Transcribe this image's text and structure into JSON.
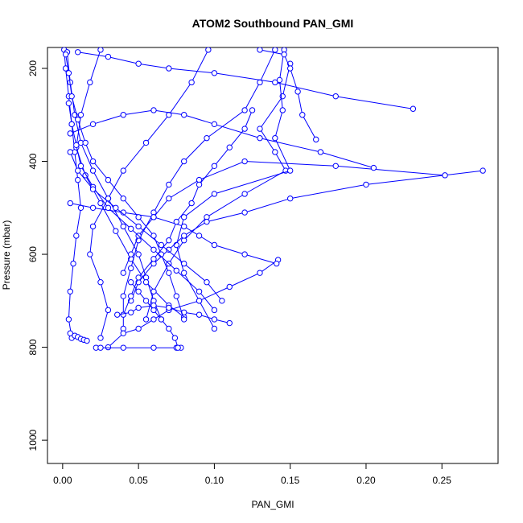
{
  "chart_data": {
    "type": "line",
    "title": "ATOM2 Southbound PAN_GMI",
    "xlabel": "PAN_GMI",
    "ylabel": "Pressure (mbar)",
    "xlim": [
      -0.01,
      0.287
    ],
    "ylim": [
      1050,
      155
    ],
    "y_reversed": true,
    "xticks": [
      0.0,
      0.05,
      0.1,
      0.15,
      0.2,
      0.25
    ],
    "xtick_labels": [
      "0.00",
      "0.05",
      "0.10",
      "0.15",
      "0.20",
      "0.25"
    ],
    "yticks": [
      200,
      400,
      600,
      800,
      1000
    ],
    "ytick_labels": [
      "200",
      "400",
      "600",
      "800",
      "1000"
    ],
    "grid": false,
    "series_color": "#0000ff",
    "marker": "open-circle",
    "series": [
      {
        "points": [
          [
            0.001,
            160
          ],
          [
            0.002,
            200
          ],
          [
            0.004,
            260
          ],
          [
            0.006,
            320
          ],
          [
            0.008,
            380
          ],
          [
            0.01,
            440
          ],
          [
            0.012,
            500
          ],
          [
            0.009,
            560
          ],
          [
            0.007,
            620
          ],
          [
            0.005,
            680
          ],
          [
            0.004,
            740
          ],
          [
            0.006,
            780
          ]
        ]
      },
      {
        "points": [
          [
            0.003,
            165
          ],
          [
            0.005,
            230
          ],
          [
            0.008,
            300
          ],
          [
            0.012,
            360
          ],
          [
            0.02,
            420
          ],
          [
            0.03,
            480
          ],
          [
            0.04,
            540
          ],
          [
            0.05,
            600
          ],
          [
            0.055,
            650
          ],
          [
            0.06,
            700
          ],
          [
            0.065,
            740
          ]
        ]
      },
      {
        "points": [
          [
            0.025,
            160
          ],
          [
            0.018,
            230
          ],
          [
            0.012,
            300
          ],
          [
            0.009,
            370
          ],
          [
            0.015,
            430
          ],
          [
            0.025,
            490
          ],
          [
            0.035,
            550
          ],
          [
            0.045,
            610
          ],
          [
            0.055,
            660
          ],
          [
            0.07,
            710
          ],
          [
            0.08,
            735
          ]
        ]
      },
      {
        "points": [
          [
            0.096,
            160
          ],
          [
            0.085,
            230
          ],
          [
            0.07,
            300
          ],
          [
            0.055,
            360
          ],
          [
            0.04,
            420
          ],
          [
            0.03,
            480
          ],
          [
            0.02,
            540
          ],
          [
            0.018,
            600
          ],
          [
            0.025,
            660
          ],
          [
            0.03,
            720
          ],
          [
            0.025,
            780
          ]
        ]
      },
      {
        "points": [
          [
            0.14,
            160
          ],
          [
            0.13,
            230
          ],
          [
            0.12,
            290
          ],
          [
            0.095,
            350
          ],
          [
            0.08,
            400
          ],
          [
            0.07,
            450
          ],
          [
            0.06,
            510
          ],
          [
            0.05,
            570
          ],
          [
            0.045,
            630
          ],
          [
            0.04,
            690
          ],
          [
            0.04,
            760
          ]
        ]
      },
      {
        "points": [
          [
            0.15,
            190
          ],
          [
            0.145,
            260
          ],
          [
            0.13,
            330
          ],
          [
            0.14,
            380
          ],
          [
            0.147,
            420
          ],
          [
            0.12,
            470
          ],
          [
            0.095,
            520
          ],
          [
            0.08,
            570
          ],
          [
            0.07,
            620
          ],
          [
            0.06,
            680
          ],
          [
            0.055,
            740
          ]
        ]
      },
      {
        "points": [
          [
            0.146,
            160
          ],
          [
            0.143,
            225
          ],
          [
            0.145,
            290
          ],
          [
            0.14,
            350
          ],
          [
            0.15,
            420
          ],
          [
            0.1,
            470
          ],
          [
            0.08,
            520
          ],
          [
            0.075,
            580
          ],
          [
            0.08,
            640
          ],
          [
            0.09,
            700
          ],
          [
            0.1,
            760
          ]
        ]
      },
      {
        "points": [
          [
            0.231,
            287
          ],
          [
            0.18,
            260
          ],
          [
            0.14,
            230
          ],
          [
            0.1,
            210
          ],
          [
            0.07,
            200
          ],
          [
            0.05,
            190
          ],
          [
            0.03,
            175
          ],
          [
            0.01,
            165
          ]
        ]
      },
      {
        "points": [
          [
            0.277,
            420
          ],
          [
            0.2,
            450
          ],
          [
            0.15,
            480
          ],
          [
            0.12,
            510
          ],
          [
            0.095,
            530
          ],
          [
            0.08,
            560
          ],
          [
            0.07,
            590
          ],
          [
            0.06,
            620
          ],
          [
            0.05,
            660
          ],
          [
            0.045,
            700
          ]
        ]
      },
      {
        "points": [
          [
            0.252,
            430
          ],
          [
            0.18,
            410
          ],
          [
            0.12,
            400
          ],
          [
            0.09,
            440
          ],
          [
            0.07,
            480
          ],
          [
            0.06,
            520
          ],
          [
            0.05,
            560
          ],
          [
            0.045,
            600
          ],
          [
            0.04,
            640
          ]
        ]
      },
      {
        "points": [
          [
            0.205,
            414
          ],
          [
            0.17,
            380
          ],
          [
            0.13,
            350
          ],
          [
            0.1,
            320
          ],
          [
            0.08,
            300
          ],
          [
            0.06,
            290
          ],
          [
            0.04,
            300
          ],
          [
            0.02,
            320
          ],
          [
            0.005,
            340
          ]
        ]
      },
      {
        "points": [
          [
            0.167,
            353
          ],
          [
            0.158,
            300
          ],
          [
            0.155,
            250
          ],
          [
            0.15,
            200
          ],
          [
            0.146,
            170
          ],
          [
            0.13,
            160
          ]
        ]
      },
      {
        "points": [
          [
            0.142,
            612
          ],
          [
            0.13,
            640
          ],
          [
            0.11,
            670
          ],
          [
            0.09,
            700
          ],
          [
            0.07,
            720
          ],
          [
            0.06,
            740
          ],
          [
            0.05,
            760
          ],
          [
            0.04,
            770
          ],
          [
            0.03,
            800
          ]
        ]
      },
      {
        "points": [
          [
            0.141,
            620
          ],
          [
            0.12,
            600
          ],
          [
            0.1,
            580
          ],
          [
            0.09,
            560
          ],
          [
            0.08,
            540
          ],
          [
            0.06,
            520
          ],
          [
            0.04,
            510
          ],
          [
            0.02,
            500
          ],
          [
            0.005,
            490
          ]
        ]
      },
      {
        "points": [
          [
            0.125,
            290
          ],
          [
            0.12,
            330
          ],
          [
            0.11,
            370
          ],
          [
            0.1,
            410
          ],
          [
            0.09,
            450
          ],
          [
            0.085,
            490
          ],
          [
            0.075,
            530
          ],
          [
            0.07,
            570
          ],
          [
            0.06,
            610
          ],
          [
            0.05,
            650
          ],
          [
            0.045,
            690
          ],
          [
            0.04,
            730
          ]
        ]
      },
      {
        "points": [
          [
            0.022,
            801
          ],
          [
            0.025,
            801
          ],
          [
            0.04,
            801
          ],
          [
            0.06,
            801
          ],
          [
            0.075,
            801
          ],
          [
            0.078,
            801
          ]
        ]
      },
      {
        "points": [
          [
            0.076,
            801
          ],
          [
            0.074,
            780
          ],
          [
            0.07,
            760
          ],
          [
            0.065,
            740
          ],
          [
            0.06,
            720
          ],
          [
            0.055,
            700
          ],
          [
            0.05,
            680
          ],
          [
            0.045,
            660
          ]
        ]
      },
      {
        "points": [
          [
            0.005,
            770
          ],
          [
            0.008,
            775
          ],
          [
            0.01,
            778
          ],
          [
            0.012,
            782
          ],
          [
            0.014,
            784
          ],
          [
            0.016,
            786
          ]
        ]
      },
      {
        "points": [
          [
            0.036,
            730
          ],
          [
            0.045,
            725
          ],
          [
            0.05,
            715
          ],
          [
            0.06,
            710
          ],
          [
            0.07,
            715
          ],
          [
            0.08,
            725
          ],
          [
            0.09,
            730
          ],
          [
            0.1,
            740
          ],
          [
            0.11,
            748
          ]
        ]
      },
      {
        "points": [
          [
            0.002,
            170
          ],
          [
            0.004,
            210
          ],
          [
            0.006,
            260
          ],
          [
            0.01,
            310
          ],
          [
            0.015,
            360
          ],
          [
            0.02,
            400
          ],
          [
            0.03,
            440
          ],
          [
            0.04,
            480
          ],
          [
            0.05,
            520
          ],
          [
            0.06,
            560
          ],
          [
            0.065,
            600
          ],
          [
            0.07,
            640
          ],
          [
            0.075,
            690
          ],
          [
            0.08,
            740
          ]
        ]
      },
      {
        "points": [
          [
            0.004,
            275
          ],
          [
            0.006,
            320
          ],
          [
            0.009,
            365
          ],
          [
            0.012,
            410
          ],
          [
            0.02,
            455
          ],
          [
            0.03,
            500
          ],
          [
            0.045,
            545
          ],
          [
            0.06,
            590
          ],
          [
            0.075,
            635
          ],
          [
            0.09,
            680
          ],
          [
            0.1,
            720
          ]
        ]
      },
      {
        "points": [
          [
            0.005,
            380
          ],
          [
            0.01,
            420
          ],
          [
            0.02,
            460
          ],
          [
            0.035,
            500
          ],
          [
            0.05,
            540
          ],
          [
            0.065,
            580
          ],
          [
            0.08,
            620
          ],
          [
            0.095,
            660
          ],
          [
            0.105,
            700
          ]
        ]
      }
    ]
  }
}
